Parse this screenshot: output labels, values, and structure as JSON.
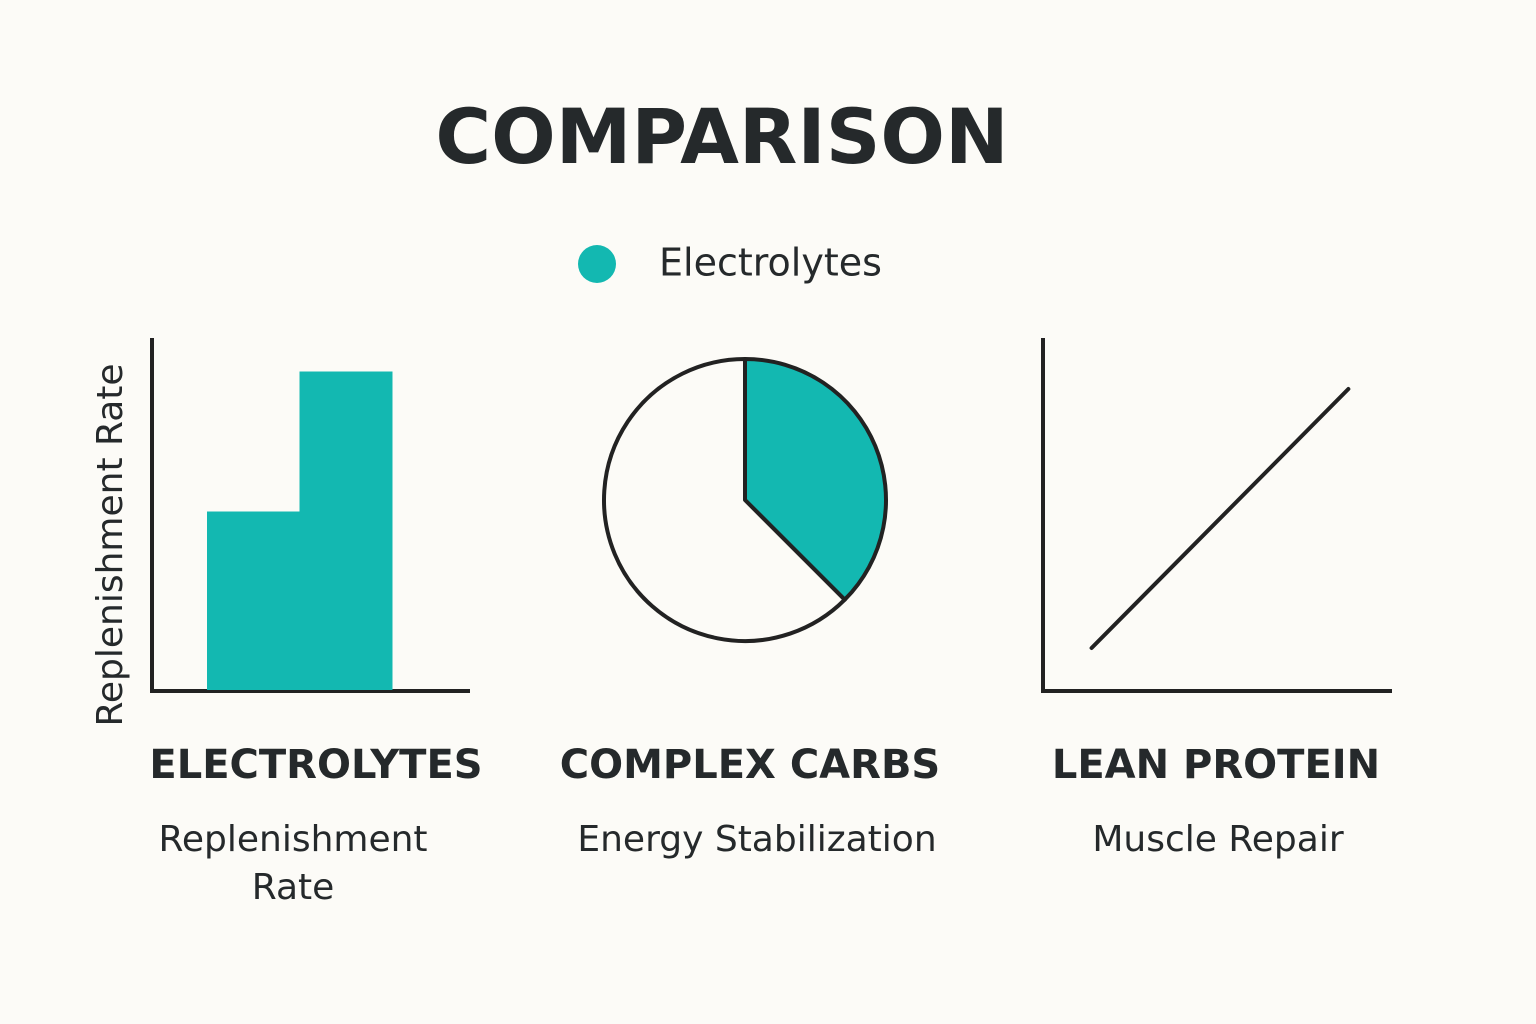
{
  "title": "COMPARISON",
  "chart_data": [
    {
      "type": "bar",
      "title": "ELECTROLYTES",
      "subtitle": "Replenishment Rate",
      "ylabel": "Replenishment Rate",
      "categories": [
        null,
        null
      ],
      "series": [
        {
          "name": "Electrolytes",
          "color": "#13b8b1",
          "values": [
            51,
            91
          ]
        }
      ],
      "ylim": [
        0,
        100
      ]
    },
    {
      "type": "pie",
      "title": "COMPLEX CARBS",
      "subtitle": "Energy Stabilization",
      "categories": [
        null,
        null
      ],
      "values": [
        37.5,
        62.5
      ],
      "colors": [
        "#13b8b1",
        "#fcfbf7"
      ]
    },
    {
      "type": "line",
      "title": "LEAN PROTEIN",
      "subtitle": "Muscle Repair",
      "x": [
        14,
        88
      ],
      "series": [
        {
          "color": "#222222",
          "values": [
            12,
            86
          ]
        }
      ],
      "xlim": [
        0,
        100
      ],
      "ylim": [
        0,
        100
      ]
    }
  ]
}
